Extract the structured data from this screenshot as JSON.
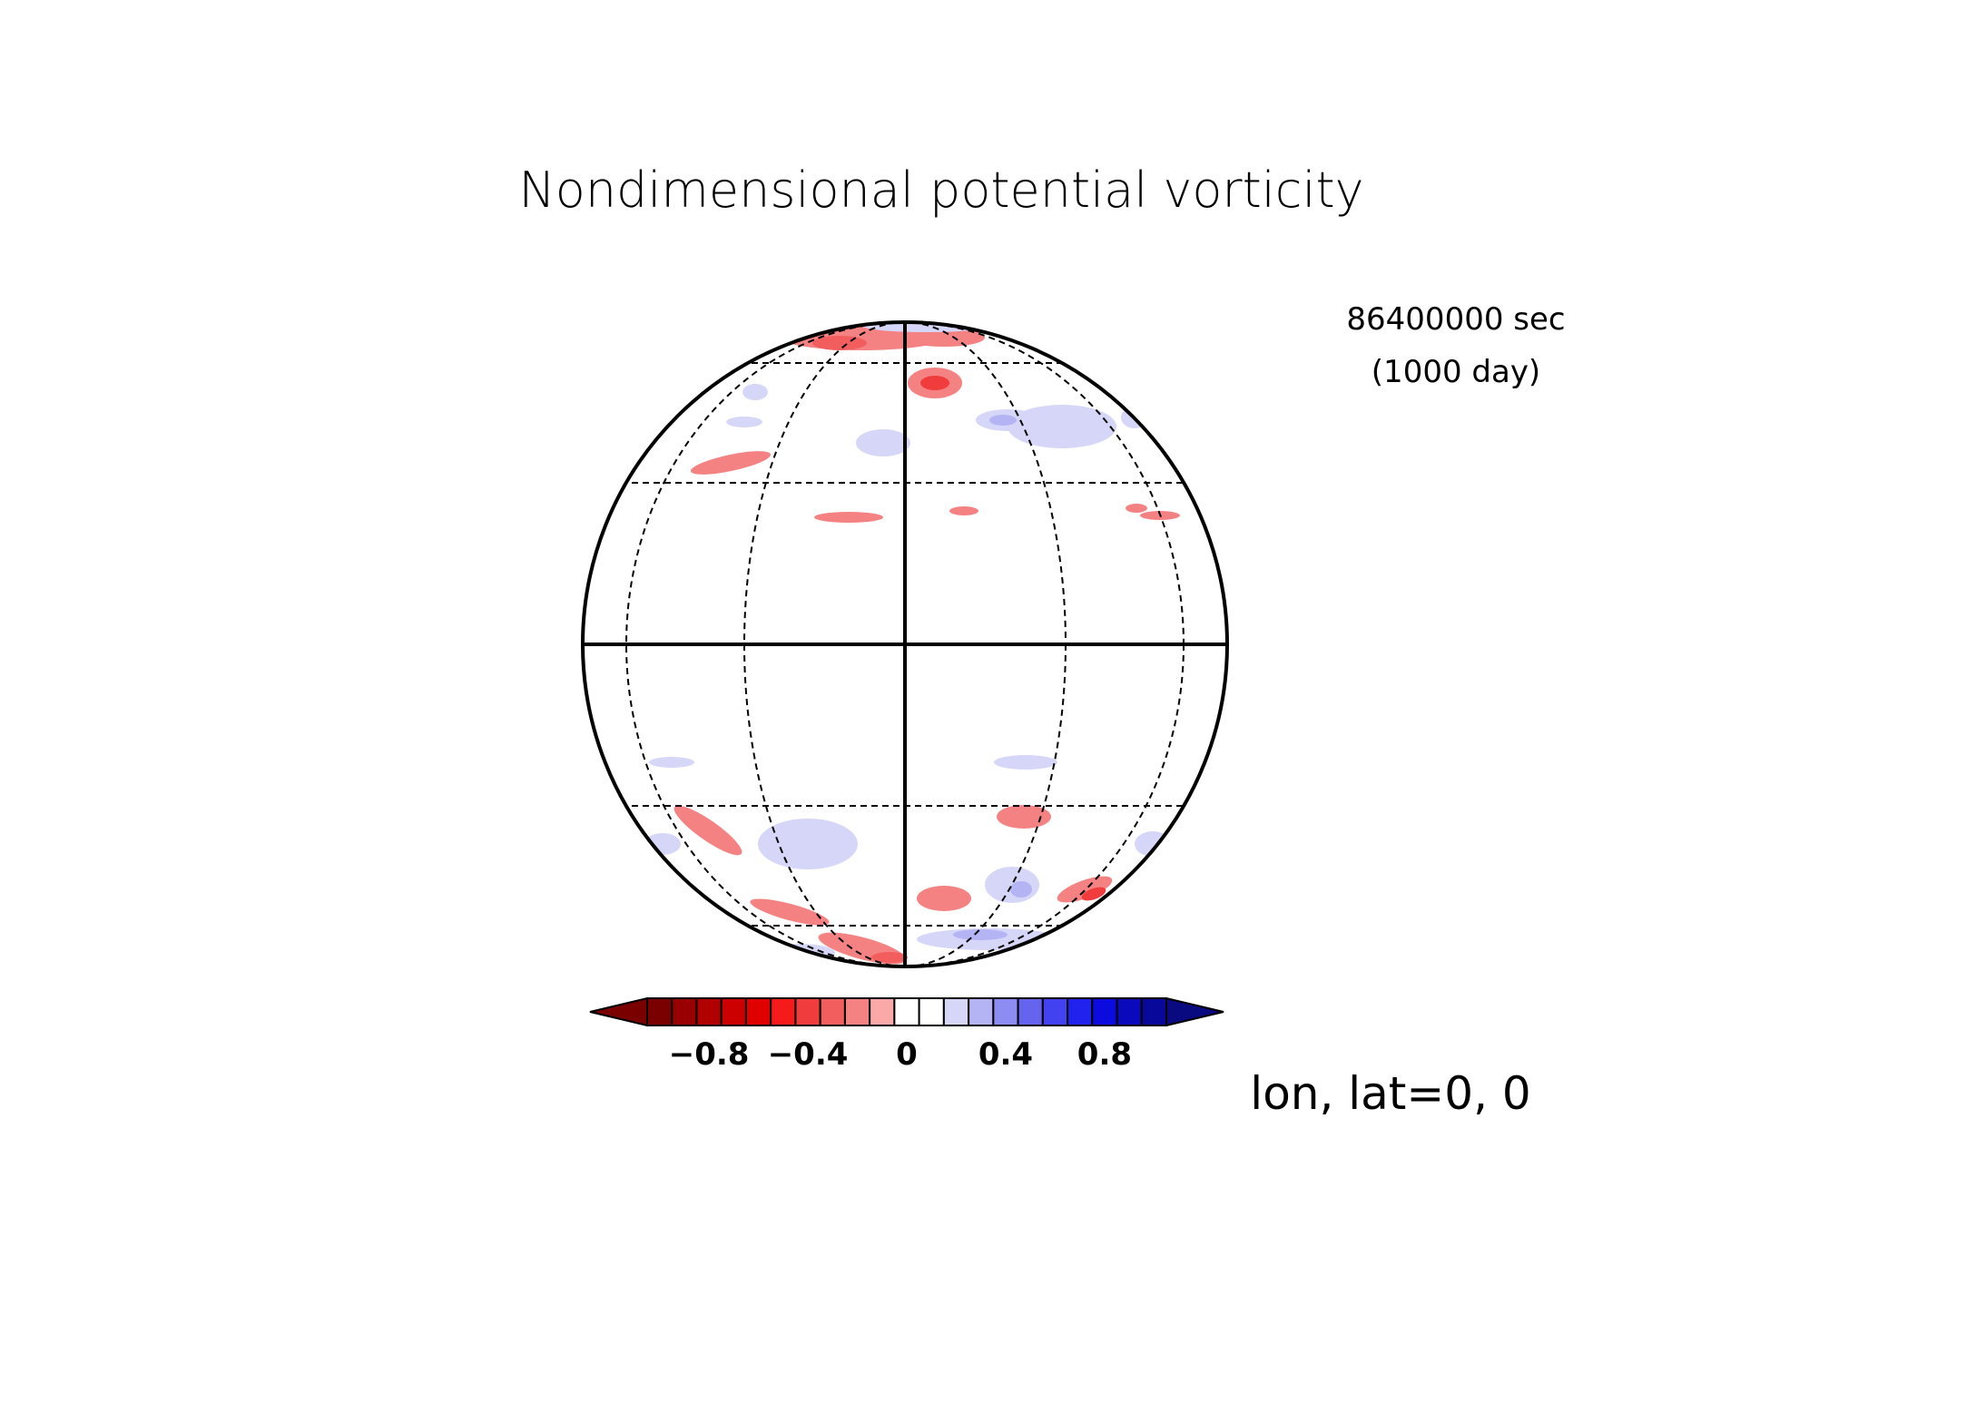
{
  "title": "Nondimensional potential vorticity",
  "time": {
    "seconds": "86400000 sec",
    "days": "(1000 day)"
  },
  "projection_label": "lon, lat=0, 0",
  "colorbar": {
    "tick_labels": [
      "−0.8",
      "−0.4",
      "0",
      "0.4",
      "0.8"
    ],
    "tick_values": [
      -0.8,
      -0.4,
      0,
      0.4,
      0.8
    ],
    "levels": [
      -0.9,
      -0.8,
      -0.7,
      -0.6,
      -0.5,
      -0.4,
      -0.3,
      -0.2,
      -0.1,
      0,
      0.1,
      0.2,
      0.3,
      0.4,
      0.5,
      0.6,
      0.7,
      0.8,
      0.9
    ],
    "colors": [
      "#7a0000",
      "#990000",
      "#b00000",
      "#cc0000",
      "#e00000",
      "#f51b1b",
      "#f03c3c",
      "#f25e5e",
      "#f58282",
      "#faa8a8",
      "#ffffff",
      "#ffffff",
      "#d6d6f8",
      "#b4b4f5",
      "#8c8cf2",
      "#6464ef",
      "#4242f0",
      "#2222ee",
      "#0b0be0",
      "#0a0abc",
      "#08089a"
    ],
    "under_color": "#7a0000",
    "over_color": "#0a0a80"
  }
}
